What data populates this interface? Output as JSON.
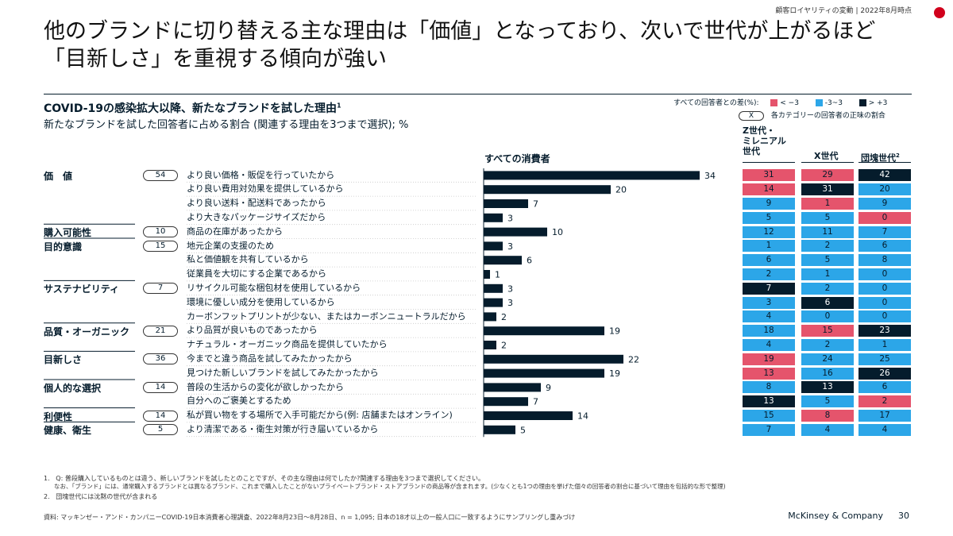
{
  "header": {
    "top_right": "顧客ロイヤリティの変動 | 2022年8月時点",
    "title_line1": "他のブランドに切り替える主な理由は「価値」となっており、次いで世代が上がるほど",
    "title_line2": "「目新しさ」を重視する傾向が強い"
  },
  "colors": {
    "navy": "#051c2c",
    "negative": "#e5546c",
    "neutral": "#2ca6e8",
    "flag_red": "#d1001c"
  },
  "legend": {
    "label": "すべての回答者との差(%):",
    "items": [
      {
        "label": "< −3",
        "color": "#e5546c"
      },
      {
        "label": "-3~3",
        "color": "#2ca6e8"
      },
      {
        "label": "> +3",
        "color": "#051c2c"
      }
    ],
    "pill_symbol": "X",
    "pill_note": "各カテゴリーの回答者の正味の割合"
  },
  "chart_data": {
    "type": "bar",
    "title": "COVID-19の感染拡大以降、新たなブランドを試した理由",
    "title_footnote": "1",
    "subtitle": "新たなブランドを試した回答者に占める割合 (関連する理由を3つまで選択); %",
    "bar_column_label": "すべての消費者",
    "generation_columns": [
      "Z世代・\nミレニアル\n世代",
      "X世代",
      "団塊世代"
    ],
    "generation_column_footnote": "2",
    "categories_groups": [
      {
        "name": "価　値",
        "net": "54"
      },
      {
        "name": "購入可能性",
        "net": "10"
      },
      {
        "name": "目的意識",
        "net": "15"
      },
      {
        "name": "サステナビリティ",
        "net": "7"
      },
      {
        "name": "品質・オーガニック",
        "net": "21"
      },
      {
        "name": "目新しさ",
        "net": "36"
      },
      {
        "name": "個人的な選択",
        "net": "14"
      },
      {
        "name": "利便性",
        "net": "14"
      },
      {
        "name": "健康、衛生",
        "net": "5"
      }
    ],
    "rows": [
      {
        "group": 0,
        "reason": "より良い価格・販促を行っていたから",
        "all": 34,
        "z": 31,
        "x": 29,
        "boomer": 42,
        "zc": "neg",
        "xc": "neg",
        "bc": "pos"
      },
      {
        "group": 0,
        "reason": "より良い費用対効果を提供しているから",
        "all": 20,
        "z": 14,
        "x": 31,
        "boomer": 20,
        "zc": "neg",
        "xc": "pos",
        "bc": "mid"
      },
      {
        "group": 0,
        "reason": "より良い送料・配送料であったから",
        "all": 7,
        "z": 9,
        "x": 1,
        "boomer": 9,
        "zc": "mid",
        "xc": "neg",
        "bc": "mid"
      },
      {
        "group": 0,
        "reason": "より大きなパッケージサイズだから",
        "all": 3,
        "z": 5,
        "x": 5,
        "boomer": 0,
        "zc": "mid",
        "xc": "mid",
        "bc": "neg"
      },
      {
        "group": 1,
        "reason": "商品の在庫があったから",
        "all": 10,
        "z": 12,
        "x": 11,
        "boomer": 7,
        "zc": "mid",
        "xc": "mid",
        "bc": "mid"
      },
      {
        "group": 2,
        "reason": "地元企業の支援のため",
        "all": 3,
        "z": 1,
        "x": 2,
        "boomer": 6,
        "zc": "mid",
        "xc": "mid",
        "bc": "mid"
      },
      {
        "group": 2,
        "reason": "私と価値観を共有しているから",
        "all": 6,
        "z": 6,
        "x": 5,
        "boomer": 8,
        "zc": "mid",
        "xc": "mid",
        "bc": "mid"
      },
      {
        "group": 2,
        "reason": "従業員を大切にする企業であるから",
        "all": 1,
        "z": 2,
        "x": 1,
        "boomer": 0,
        "zc": "mid",
        "xc": "mid",
        "bc": "mid"
      },
      {
        "group": 3,
        "reason": "リサイクル可能な梱包材を使用しているから",
        "all": 3,
        "z": 7,
        "x": 2,
        "boomer": 0,
        "zc": "pos",
        "xc": "mid",
        "bc": "mid"
      },
      {
        "group": 3,
        "reason": "環境に優しい成分を使用しているから",
        "all": 3,
        "z": 3,
        "x": 6,
        "boomer": 0,
        "zc": "mid",
        "xc": "pos",
        "bc": "mid"
      },
      {
        "group": 3,
        "reason": "カーボンフットプリントが少ない、またはカーボンニュートラルだから",
        "all": 2,
        "z": 4,
        "x": 0,
        "boomer": 0,
        "zc": "mid",
        "xc": "mid",
        "bc": "mid"
      },
      {
        "group": 4,
        "reason": "より品質が良いものであったから",
        "all": 19,
        "z": 18,
        "x": 15,
        "boomer": 23,
        "zc": "mid",
        "xc": "neg",
        "bc": "pos"
      },
      {
        "group": 4,
        "reason": "ナチュラル・オーガニック商品を提供していたから",
        "all": 2,
        "z": 4,
        "x": 2,
        "boomer": 1,
        "zc": "mid",
        "xc": "mid",
        "bc": "mid"
      },
      {
        "group": 5,
        "reason": "今までと違う商品を試してみたかったから",
        "all": 22,
        "z": 19,
        "x": 24,
        "boomer": 25,
        "zc": "neg",
        "xc": "mid",
        "bc": "mid"
      },
      {
        "group": 5,
        "reason": "見つけた新しいブランドを試してみたかったから",
        "all": 19,
        "z": 13,
        "x": 16,
        "boomer": 26,
        "zc": "neg",
        "xc": "mid",
        "bc": "pos"
      },
      {
        "group": 6,
        "reason": "普段の生活からの変化が欲しかったから",
        "all": 9,
        "z": 8,
        "x": 13,
        "boomer": 6,
        "zc": "mid",
        "xc": "pos",
        "bc": "mid"
      },
      {
        "group": 6,
        "reason": "自分へのご褒美とするため",
        "all": 7,
        "z": 13,
        "x": 5,
        "boomer": 2,
        "zc": "pos",
        "xc": "mid",
        "bc": "neg"
      },
      {
        "group": 7,
        "reason": "私が買い物をする場所で入手可能だから(例: 店舗またはオンライン)",
        "all": 14,
        "z": 15,
        "x": 8,
        "boomer": 17,
        "zc": "mid",
        "xc": "neg",
        "bc": "mid"
      },
      {
        "group": 8,
        "reason": "より清潔である・衛生対策が行き届いているから",
        "all": 5,
        "z": 7,
        "x": 4,
        "boomer": 4,
        "zc": "mid",
        "xc": "mid",
        "bc": "mid"
      }
    ]
  },
  "footnotes": {
    "n1_num": "1.",
    "n1_line1": "Q: 普段購入しているものとは違う、新しいブランドを試したとのことですが、その主な理由は何でしたか?関連する理由を3つまで選択してください。",
    "n1_line2": "なお、「ブランド」には、通常購入するブランドとは異なるブランド、これまで購入したことがないプライベートブランド・ストアブランドの商品等が含まれます。(少なくとも1つの理由を挙げた個々の回答者の割合に基づいて理由を包括的な形で整理)",
    "n2_num": "2.",
    "n2": "団塊世代には沈黙の世代が含まれる",
    "source": "資料: マッキンゼー・アンド・カンパニーCOVID-19日本消費者心理調査、2022年8月23日～8月28日、n = 1,095; 日本の18才以上の一般人口に一致するようにサンプリングし重みづけ"
  },
  "footer": {
    "brand": "McKinsey & Company",
    "page": "30"
  }
}
